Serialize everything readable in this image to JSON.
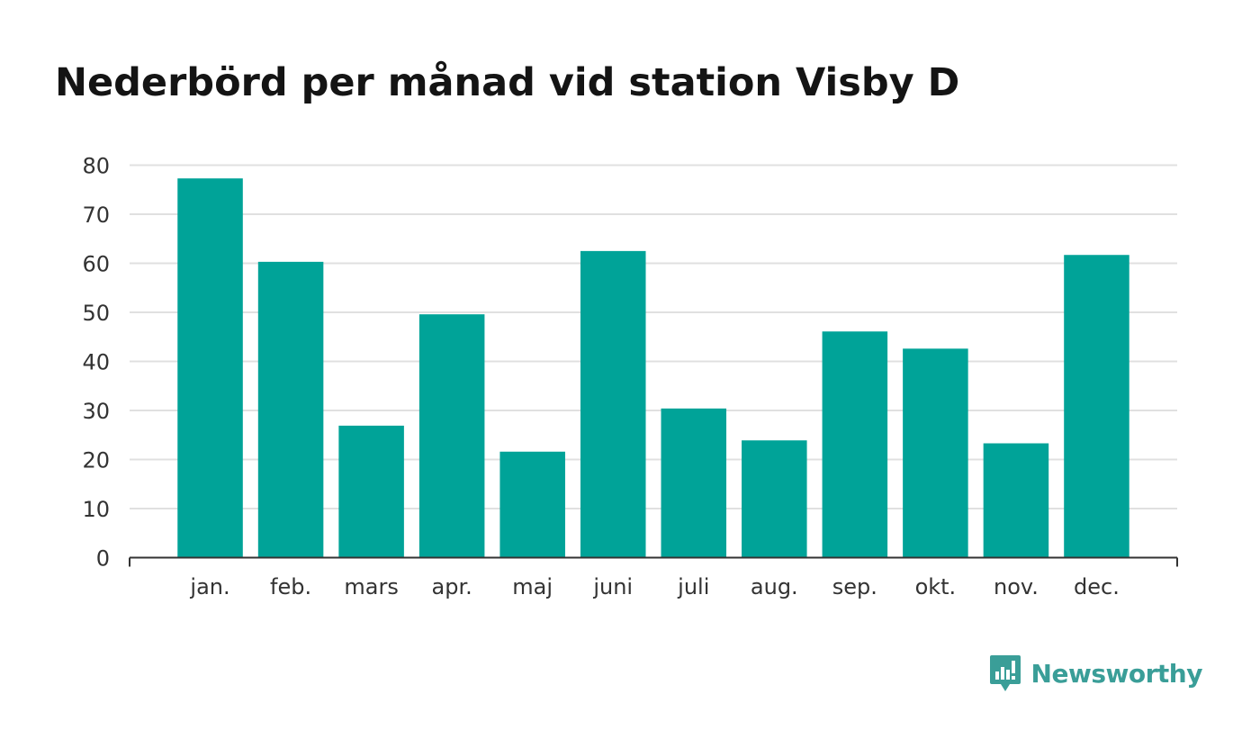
{
  "chart_data": {
    "type": "bar",
    "title": "Nederbörd per månad vid station Visby D",
    "xlabel": "",
    "ylabel": "",
    "categories": [
      "jan.",
      "feb.",
      "mars",
      "apr.",
      "maj",
      "juni",
      "juli",
      "aug.",
      "sep.",
      "okt.",
      "nov.",
      "dec."
    ],
    "values": [
      77.3,
      60.3,
      26.9,
      49.6,
      21.6,
      62.5,
      30.4,
      23.9,
      46.1,
      42.6,
      23.3,
      61.7
    ],
    "ylim": [
      0,
      80
    ],
    "yticks": [
      0,
      10,
      20,
      30,
      40,
      50,
      60,
      70,
      80
    ],
    "grid": true,
    "bar_color": "#00a398",
    "grid_color": "#e0e0e0",
    "axis_color": "#333333"
  },
  "brand": {
    "name": "Newsworthy",
    "color": "#3a9e98",
    "icon": "newsworthy-logo-icon"
  }
}
